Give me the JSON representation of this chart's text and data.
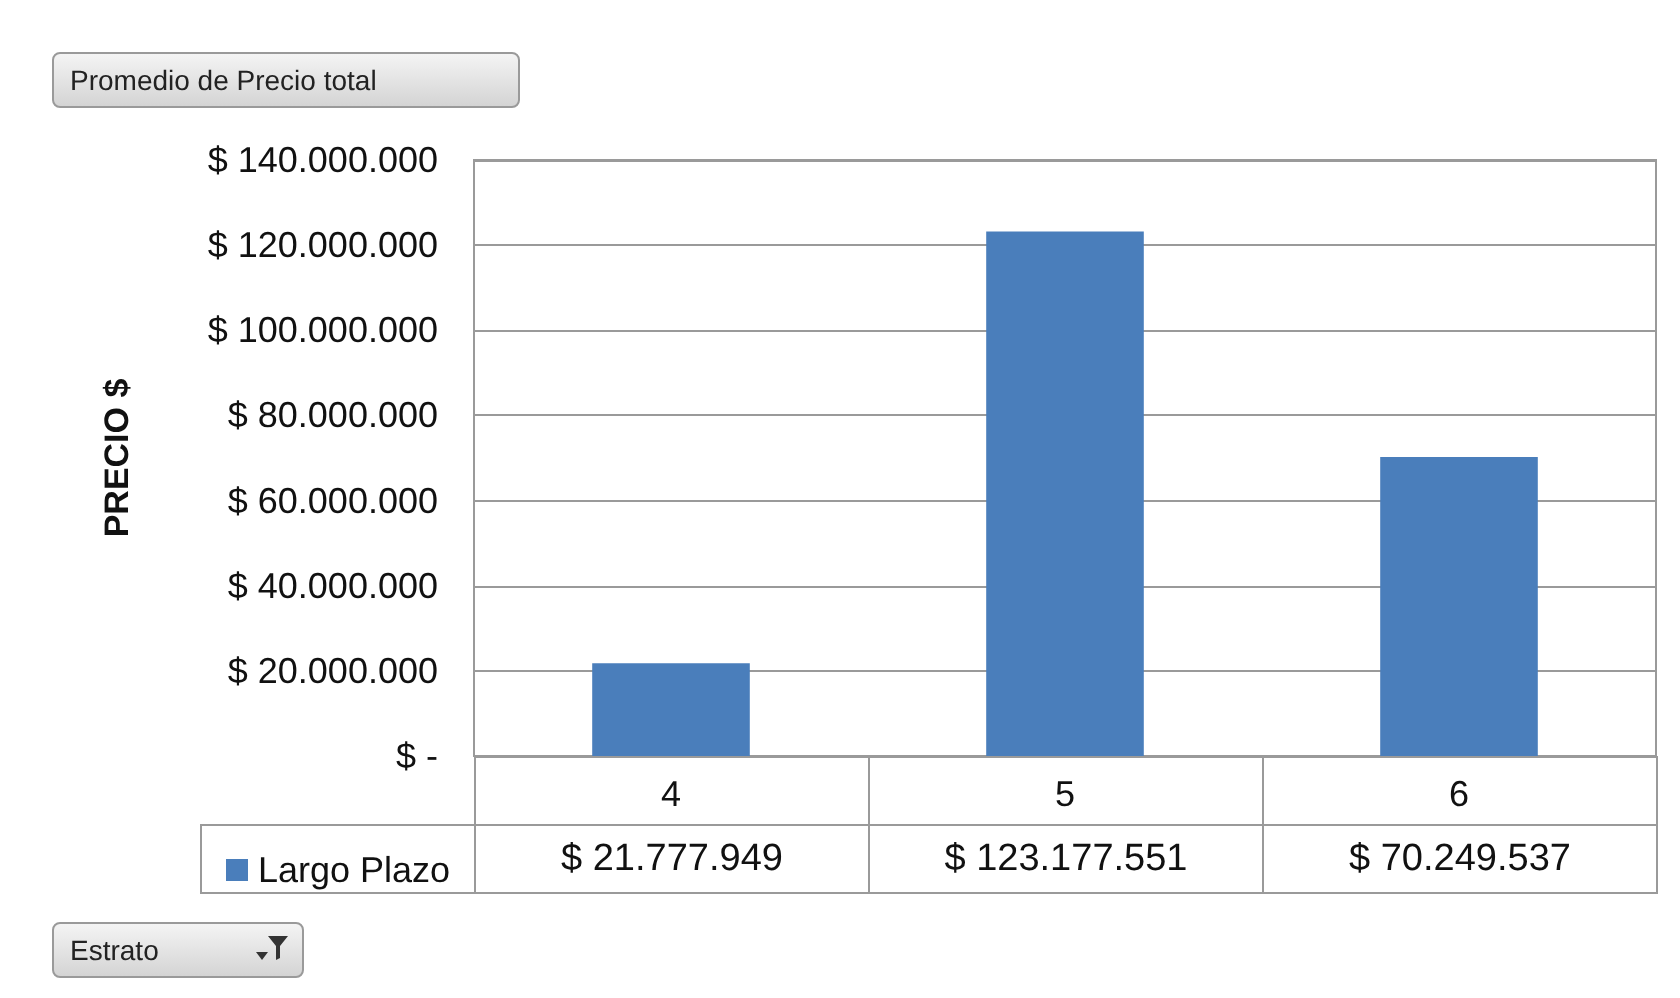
{
  "chart_data": {
    "type": "bar",
    "title": "Promedio de Precio total",
    "xlabel": "Estrato",
    "ylabel": "PRECIO $",
    "categories": [
      "4",
      "5",
      "6"
    ],
    "series": [
      {
        "name": "Largo Plazo",
        "color": "#4a7ebb",
        "values": [
          21777949,
          123177551,
          70249537
        ],
        "value_labels": [
          "$ 21.777.949",
          "$ 123.177.551",
          "$ 70.249.537"
        ]
      }
    ],
    "ylim": [
      0,
      140000000
    ],
    "yticks": [
      {
        "value": 0,
        "label": "$ -"
      },
      {
        "value": 20000000,
        "label": "$ 20.000.000"
      },
      {
        "value": 40000000,
        "label": "$ 40.000.000"
      },
      {
        "value": 60000000,
        "label": "$ 60.000.000"
      },
      {
        "value": 80000000,
        "label": "$ 80.000.000"
      },
      {
        "value": 100000000,
        "label": "$ 100.000.000"
      },
      {
        "value": 120000000,
        "label": "$ 120.000.000"
      },
      {
        "value": 140000000,
        "label": "$ 140.000.000"
      }
    ],
    "grid": "y",
    "legend": "bottom"
  }
}
